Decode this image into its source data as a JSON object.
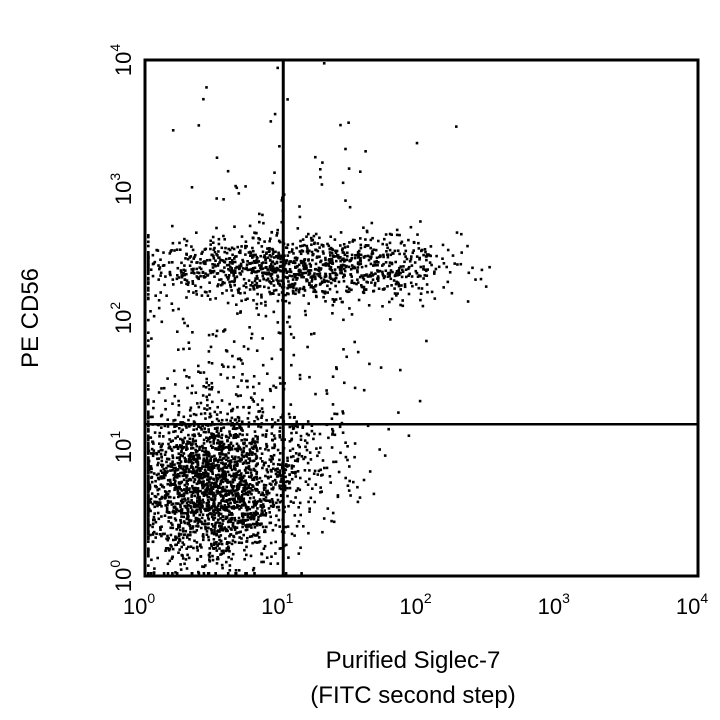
{
  "chart_data": {
    "type": "scatter",
    "title": "",
    "xlabel_lines": [
      "Purified Siglec-7",
      "(FITC second step)"
    ],
    "ylabel": "PE CD56",
    "x_scale": "log",
    "y_scale": "log",
    "xlim": [
      1,
      10000
    ],
    "ylim": [
      1,
      10000
    ],
    "tick_base": "10",
    "x_ticks": [
      {
        "value": 1,
        "exp": "0"
      },
      {
        "value": 10,
        "exp": "1"
      },
      {
        "value": 100,
        "exp": "2"
      },
      {
        "value": 1000,
        "exp": "3"
      },
      {
        "value": 10000,
        "exp": "4"
      }
    ],
    "y_ticks": [
      {
        "value": 1,
        "exp": "0"
      },
      {
        "value": 10,
        "exp": "1"
      },
      {
        "value": 100,
        "exp": "2"
      },
      {
        "value": 1000,
        "exp": "3"
      },
      {
        "value": 10000,
        "exp": "4"
      }
    ],
    "quadrant_gates": {
      "x": 10,
      "y": 15
    },
    "grid": false,
    "legend": "none",
    "point_color": "#000000",
    "populations": [
      {
        "label_visible": false,
        "x_center": 3,
        "y_center": 5,
        "x_spread_decades": 0.3,
        "y_spread_decades": 0.3,
        "count": 2300
      },
      {
        "label_visible": false,
        "x_center": 6,
        "y_center": 260,
        "x_spread_decades": 0.45,
        "y_spread_decades": 0.12,
        "count": 650
      },
      {
        "label_visible": false,
        "x_center": 30,
        "y_center": 250,
        "x_spread_decades": 0.4,
        "y_spread_decades": 0.12,
        "count": 550
      },
      {
        "label_visible": false,
        "x_center": 5,
        "y_center": 60,
        "x_spread_decades": 0.5,
        "y_spread_decades": 0.45,
        "count": 260
      },
      {
        "label_visible": false,
        "x_center": 15,
        "y_center": 9,
        "x_spread_decades": 0.25,
        "y_spread_decades": 0.2,
        "count": 140
      },
      {
        "label_visible": false,
        "x_center": 12,
        "y_center": 1500,
        "x_spread_decades": 0.5,
        "y_spread_decades": 0.3,
        "count": 45
      }
    ]
  }
}
